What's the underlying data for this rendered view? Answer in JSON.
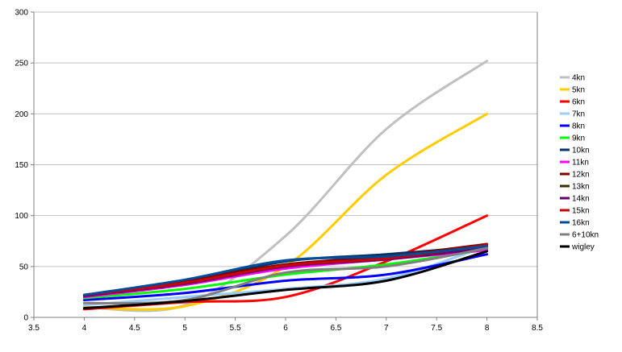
{
  "chart_data": {
    "type": "line",
    "title": "",
    "xlabel": "",
    "ylabel": "",
    "xlim": [
      3.5,
      8.5
    ],
    "ylim": [
      0,
      300
    ],
    "xticks": [
      "3.5",
      "4",
      "4.5",
      "5",
      "5.5",
      "6",
      "6.5",
      "7",
      "7.5",
      "8",
      "8.5"
    ],
    "yticks": [
      "0",
      "50",
      "100",
      "150",
      "200",
      "250",
      "300"
    ],
    "grid": "horizontal",
    "legend_position": "right",
    "x": [
      4,
      5,
      6,
      7,
      8
    ],
    "series": [
      {
        "name": "4kn",
        "color": "#c0c0c0",
        "values": [
          10,
          12,
          80,
          185,
          252
        ]
      },
      {
        "name": "5kn",
        "color": "#ffcc00",
        "values": [
          10,
          11,
          50,
          140,
          200
        ]
      },
      {
        "name": "6kn",
        "color": "#ff0000",
        "values": [
          8,
          15,
          20,
          55,
          100
        ]
      },
      {
        "name": "7kn",
        "color": "#99ccff",
        "values": [
          12,
          20,
          28,
          38,
          70
        ]
      },
      {
        "name": "8kn",
        "color": "#0000ff",
        "values": [
          17,
          24,
          36,
          42,
          62
        ]
      },
      {
        "name": "9kn",
        "color": "#00ff00",
        "values": [
          19,
          28,
          42,
          52,
          67
        ]
      },
      {
        "name": "10kn",
        "color": "#003366",
        "values": [
          22,
          35,
          55,
          62,
          70
        ]
      },
      {
        "name": "11kn",
        "color": "#ff00ff",
        "values": [
          20,
          32,
          48,
          57,
          66
        ]
      },
      {
        "name": "12kn",
        "color": "#800000",
        "values": [
          22,
          36,
          52,
          60,
          72
        ]
      },
      {
        "name": "13kn",
        "color": "#333300",
        "values": [
          21,
          33,
          50,
          58,
          70
        ]
      },
      {
        "name": "14kn",
        "color": "#660066",
        "values": [
          21,
          33,
          50,
          57,
          68
        ]
      },
      {
        "name": "15kn",
        "color": "#cc0000",
        "values": [
          22,
          34,
          51,
          58,
          71
        ]
      },
      {
        "name": "16kn",
        "color": "#004c99",
        "values": [
          22,
          37,
          56,
          60,
          70
        ]
      },
      {
        "name": "6+10kn",
        "color": "#808080",
        "values": [
          14,
          17,
          44,
          50,
          68
        ]
      },
      {
        "name": "wigley",
        "color": "#000000",
        "values": [
          9,
          16,
          27,
          36,
          65
        ]
      }
    ]
  }
}
